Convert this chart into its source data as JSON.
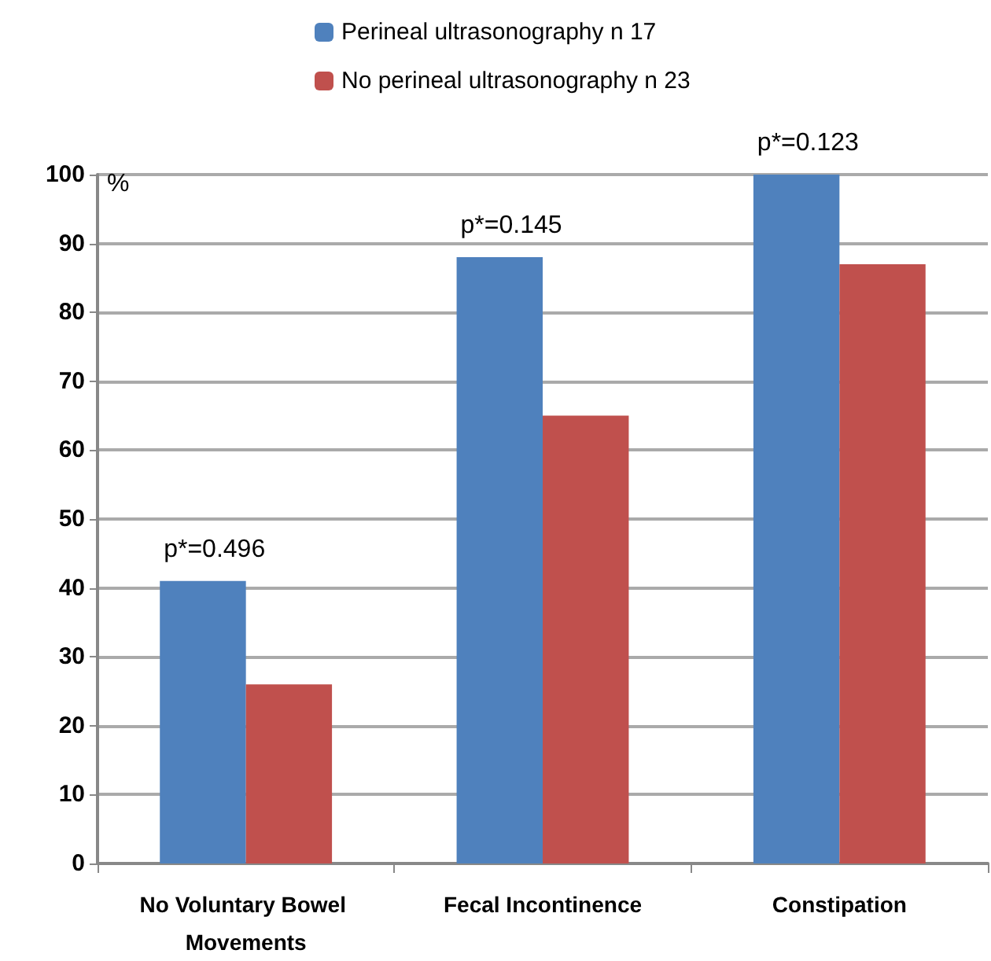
{
  "chart_data": {
    "type": "bar",
    "ylabel": "%",
    "categories": [
      "No Voluntary Bowel Movements",
      "Fecal Incontinence",
      "Constipation"
    ],
    "series": [
      {
        "name": "Perineal ultrasonography n 17",
        "color": "#4f81bd",
        "values": [
          41,
          88,
          100
        ]
      },
      {
        "name": "No perineal ultrasonography n 23",
        "color": "#c0504d",
        "values": [
          26,
          65,
          87
        ]
      }
    ],
    "ylim": [
      0,
      100
    ],
    "yticks": [
      0,
      10,
      20,
      30,
      40,
      50,
      60,
      70,
      80,
      90,
      100
    ],
    "grid": "y",
    "legend": "top",
    "annotations": [
      {
        "text": "p*=0.496",
        "x": "No Voluntary Bowel Movements",
        "y": 41
      },
      {
        "text": "p*=0.145",
        "x": "Fecal Incontinence",
        "y": 88
      },
      {
        "text": "p*=0.123",
        "x": "Constipation",
        "y": 100
      }
    ]
  }
}
